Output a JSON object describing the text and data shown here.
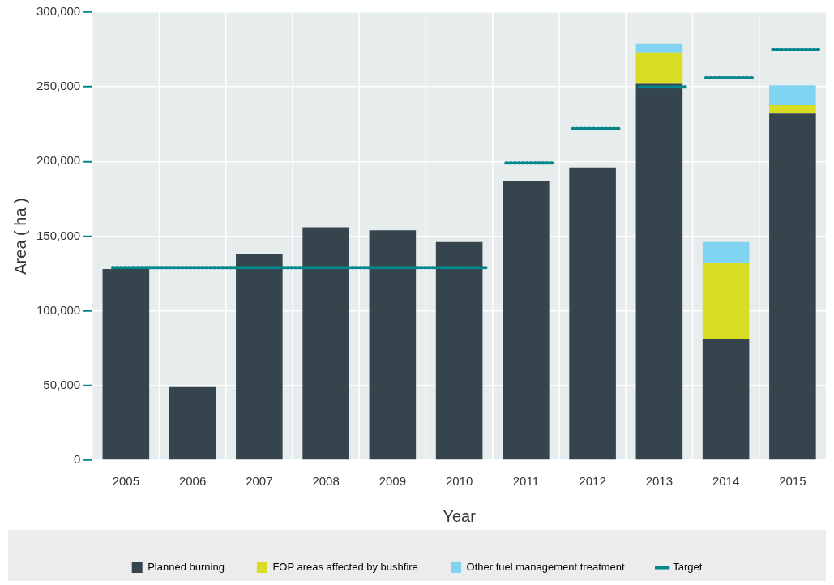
{
  "chart_data": {
    "type": "bar",
    "stacked": true,
    "xlabel": "Year",
    "ylabel": "Area ( ha )",
    "x": [
      2005,
      2006,
      2007,
      2008,
      2009,
      2010,
      2011,
      2012,
      2013,
      2014,
      2015
    ],
    "xlim": [
      2004.5,
      2015.5
    ],
    "xticks": [
      2005,
      2006,
      2007,
      2008,
      2009,
      2010,
      2011,
      2012,
      2013,
      2014,
      2015
    ],
    "series": [
      {
        "name": "Planned burning",
        "color": "#36454d",
        "values": [
          128000,
          49000,
          138000,
          156000,
          154000,
          146000,
          187000,
          196000,
          252000,
          81000,
          232000
        ]
      },
      {
        "name": "FOP areas affected by bushfire",
        "color": "#d8dc22",
        "values": [
          0,
          0,
          0,
          0,
          0,
          0,
          0,
          0,
          21000,
          51000,
          6000
        ]
      },
      {
        "name": "Other fuel management treatment",
        "color": "#80d4f2",
        "values": [
          0,
          0,
          0,
          0,
          0,
          0,
          0,
          0,
          6000,
          14000,
          13000
        ]
      },
      {
        "name": "Target",
        "type": "line",
        "line_style": "dotted",
        "color": "#00868b",
        "x": [
          2004.8,
          2010.4,
          2010.5,
          2010.7,
          2011.4,
          2011.5,
          2011.7,
          2012.4,
          2012.5,
          2012.7,
          2013.4,
          2013.5,
          2013.7,
          2014.4,
          2014.5,
          2014.7,
          2015.4
        ],
        "values": [
          129000,
          129000,
          null,
          199000,
          199000,
          null,
          222000,
          222000,
          null,
          250000,
          250000,
          null,
          256000,
          256000,
          null,
          275000,
          275000
        ]
      }
    ],
    "ylim": [
      0,
      300000
    ],
    "yticks": [
      {
        "value": 0,
        "label": "0"
      },
      {
        "value": 50000,
        "label": "50,000"
      },
      {
        "value": 100000,
        "label": "100,000"
      },
      {
        "value": 150000,
        "label": "150,000"
      },
      {
        "value": 200000,
        "label": "200,000"
      },
      {
        "value": 250000,
        "label": "250,000"
      },
      {
        "value": 300000,
        "label": "300,000"
      }
    ],
    "grid": true,
    "legend": "bottom"
  }
}
